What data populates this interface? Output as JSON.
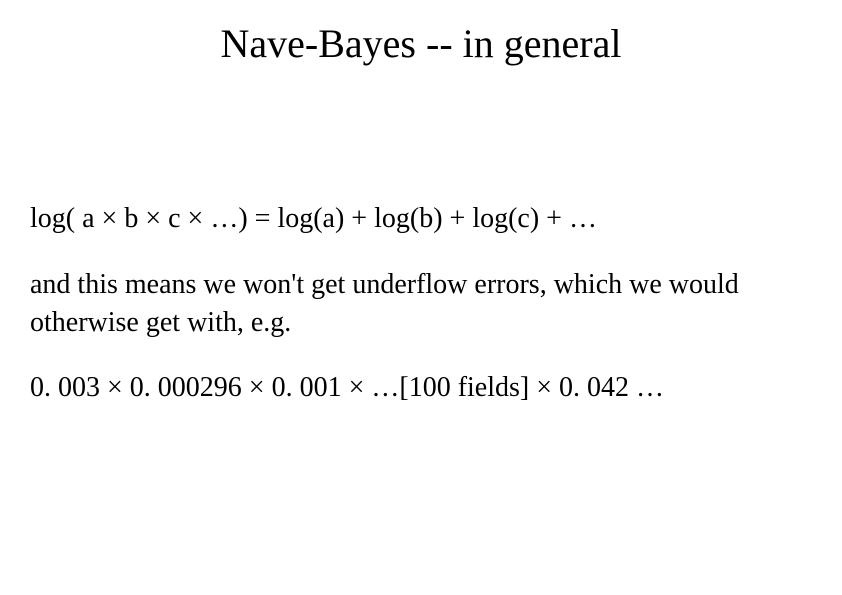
{
  "slide": {
    "title": "Nave-Bayes  --   in general",
    "equation": "log( a × b × c × …)   =  log(a) + log(b) + log(c) + …",
    "explain": "and this means we won't get underflow errors, which we would otherwise get with, e.g.",
    "example": "0. 003 × 0. 000296 × 0. 001 × …[100 fields] × 0. 042 …"
  },
  "style": {
    "background_color": "#ffffff",
    "text_color": "#000000",
    "title_fontsize": 40,
    "body_fontsize": 28,
    "font_family": "Times New Roman"
  }
}
